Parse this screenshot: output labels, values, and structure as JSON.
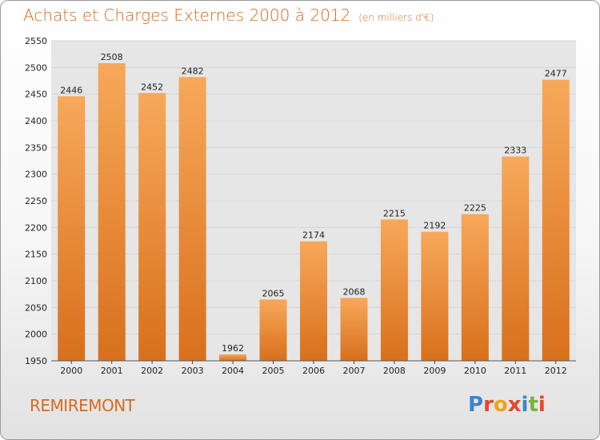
{
  "header": {
    "title": "Achats et Charges Externes 2000 à 2012",
    "subtitle": "(en milliers d'€)"
  },
  "footer": {
    "town": "REMIREMONT",
    "logo_letters": [
      "P",
      "r",
      "o",
      "x",
      "i",
      "t",
      "i"
    ],
    "logo_colors": [
      "#3a86c8",
      "#e7472e",
      "#f2a21c",
      "#e7472e",
      "#3a86c8",
      "#7bb23a",
      "#e7472e"
    ]
  },
  "colors": {
    "bar_top": "#f7a85a",
    "bar_bottom": "#d8701c",
    "grid": "#d4d4d4",
    "plot_bg": "#e6e6e6"
  },
  "chart_data": {
    "type": "bar",
    "title": "Achats et Charges Externes 2000 à 2012",
    "subtitle": "(en milliers d'€)",
    "xlabel": "",
    "ylabel": "",
    "categories": [
      "2000",
      "2001",
      "2002",
      "2003",
      "2004",
      "2005",
      "2006",
      "2007",
      "2008",
      "2009",
      "2010",
      "2011",
      "2012"
    ],
    "values": [
      2446,
      2508,
      2452,
      2482,
      1962,
      2065,
      2174,
      2068,
      2215,
      2192,
      2225,
      2333,
      2477
    ],
    "ylim": [
      1950,
      2550
    ],
    "yticks": [
      1950,
      2000,
      2050,
      2100,
      2150,
      2200,
      2250,
      2300,
      2350,
      2400,
      2450,
      2500,
      2550
    ],
    "grid": true,
    "legend": "none"
  }
}
